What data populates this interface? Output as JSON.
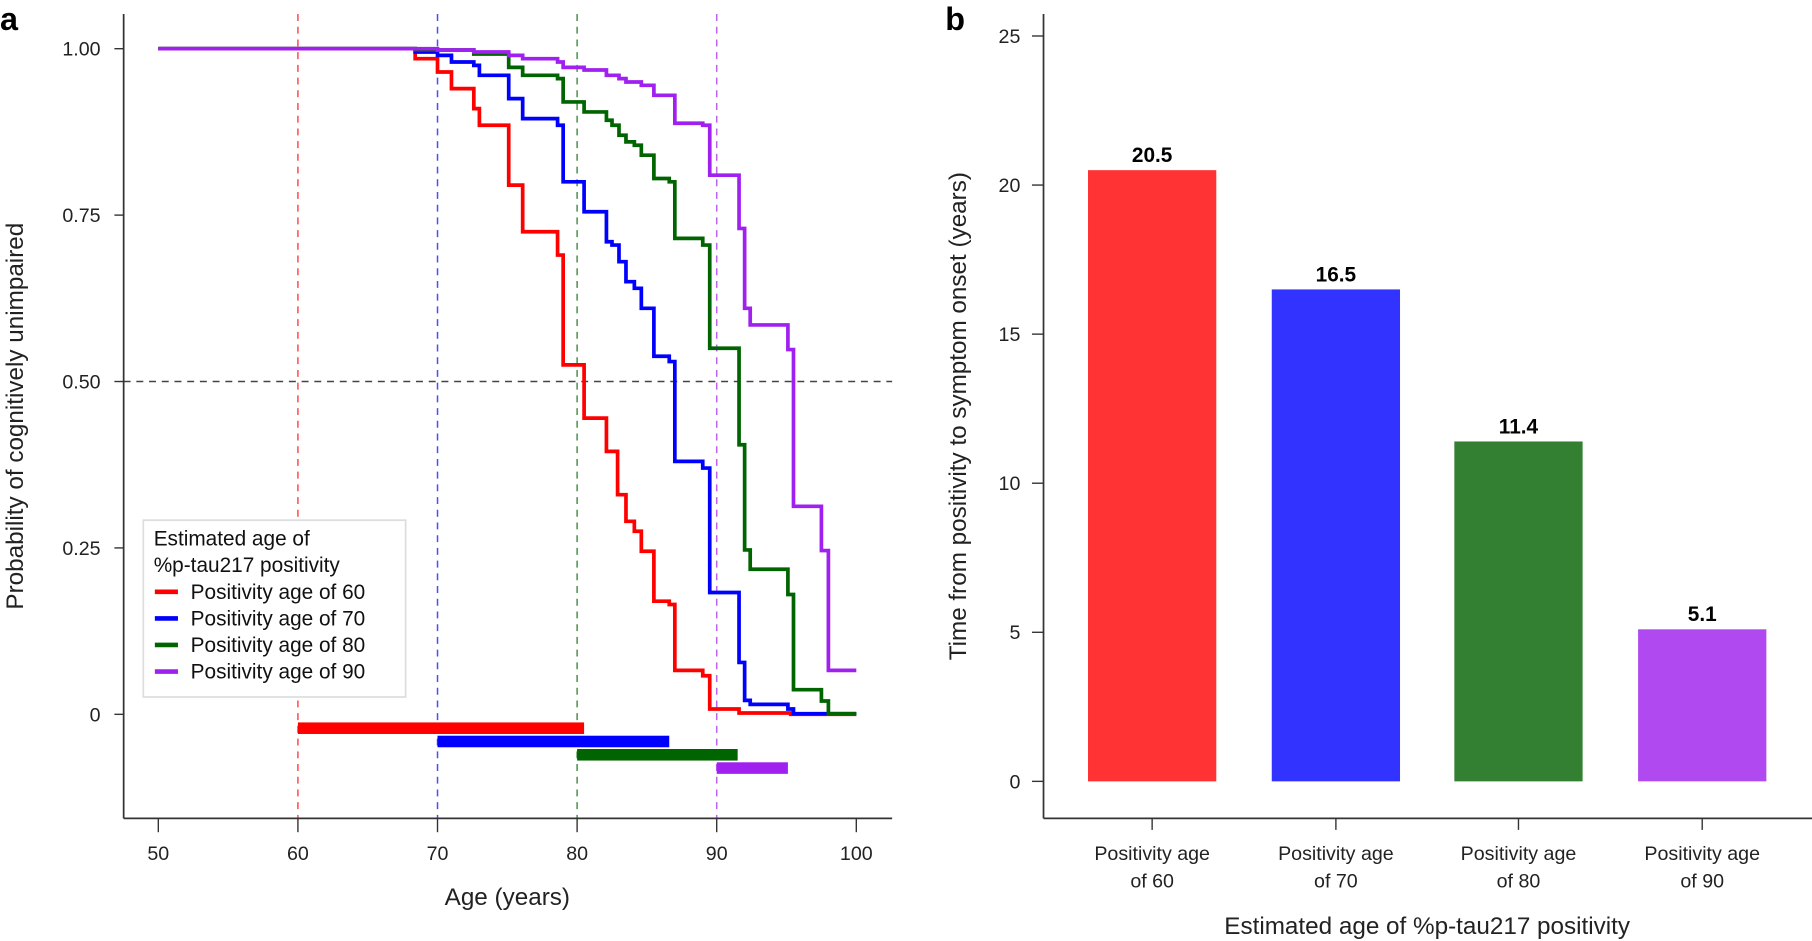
{
  "chart_data": [
    {
      "panel": "a",
      "type": "line",
      "step": true,
      "xlabel": "Age (years)",
      "ylabel": "Probability of cognitively unimpaired",
      "xlim": [
        47.5,
        102.5
      ],
      "ylim": [
        -0.154,
        1.05
      ],
      "xticks": [
        50,
        60,
        70,
        80,
        90,
        100
      ],
      "yticks": [
        {
          "value": 0,
          "label": "0"
        },
        {
          "value": 0.25,
          "label": "0.25"
        },
        {
          "value": 0.5,
          "label": "0.50"
        },
        {
          "value": 0.75,
          "label": "0.75"
        },
        {
          "value": 1.0,
          "label": "1.00"
        }
      ],
      "reference_lines": {
        "horizontal": 0.5,
        "vertical": [
          60,
          70,
          80,
          90
        ]
      },
      "legend": {
        "title_line1": "Estimated age of",
        "title_line2": "%p-tau217 positivity",
        "placement": "lower-left"
      },
      "series": [
        {
          "name": "Positivity age of 60",
          "color": "#ff0000",
          "x": [
            50,
            68.4,
            70,
            71,
            72.6,
            73,
            75.1,
            76.1,
            78.6,
            79,
            80.5,
            82.1,
            82.9,
            83.5,
            84.1,
            84.6,
            85.5,
            86.6,
            87,
            89,
            89.5,
            91.6,
            95.3
          ],
          "y": [
            1.0,
            0.985,
            0.965,
            0.94,
            0.91,
            0.885,
            0.795,
            0.725,
            0.69,
            0.525,
            0.445,
            0.395,
            0.33,
            0.29,
            0.275,
            0.245,
            0.17,
            0.165,
            0.066,
            0.058,
            0.008,
            0.002,
            0.0
          ],
          "interval": [
            60,
            80.5
          ]
        },
        {
          "name": "Positivity age of 70",
          "color": "#0000ff",
          "x": [
            50,
            68.4,
            70,
            71,
            72.6,
            73,
            75.1,
            76.1,
            78.6,
            79,
            80.5,
            82.1,
            82.5,
            83,
            83.5,
            84.1,
            84.6,
            85.5,
            86.6,
            87,
            89,
            89.5,
            91.6,
            92,
            92.4,
            95.1,
            95.5,
            100
          ],
          "y": [
            1.0,
            0.995,
            0.99,
            0.98,
            0.975,
            0.96,
            0.925,
            0.895,
            0.885,
            0.8,
            0.755,
            0.71,
            0.705,
            0.68,
            0.65,
            0.64,
            0.61,
            0.538,
            0.53,
            0.38,
            0.37,
            0.183,
            0.078,
            0.021,
            0.015,
            0.008,
            0.001,
            0.001
          ],
          "interval": [
            70,
            86.6
          ]
        },
        {
          "name": "Positivity age of 80",
          "color": "#006400",
          "x": [
            50,
            68.4,
            72.6,
            75.1,
            76.1,
            78.6,
            79,
            80.5,
            82.1,
            82.5,
            83,
            83.5,
            84.1,
            84.6,
            85.5,
            86.6,
            87,
            89,
            89.5,
            91.6,
            92,
            92.4,
            95.1,
            95.5,
            97.5,
            98,
            100
          ],
          "y": [
            1.0,
            0.998,
            0.992,
            0.972,
            0.96,
            0.955,
            0.92,
            0.905,
            0.8925,
            0.885,
            0.87,
            0.86,
            0.855,
            0.84,
            0.805,
            0.8,
            0.715,
            0.705,
            0.55,
            0.405,
            0.247,
            0.218,
            0.18,
            0.037,
            0.02,
            0.001,
            0.001
          ],
          "interval": [
            80,
            91.5
          ]
        },
        {
          "name": "Positivity age of 90",
          "color": "#a020f0",
          "x": [
            50,
            70,
            72.6,
            75.1,
            76.1,
            78.6,
            79,
            80.5,
            82.1,
            83,
            83.5,
            84.6,
            85.5,
            87,
            89,
            89.5,
            91.6,
            92,
            92.4,
            95.1,
            95.5,
            97.5,
            98,
            100
          ],
          "y": [
            1.0,
            0.998,
            0.995,
            0.99,
            0.985,
            0.98,
            0.972,
            0.968,
            0.96,
            0.955,
            0.95,
            0.945,
            0.93,
            0.888,
            0.885,
            0.81,
            0.73,
            0.61,
            0.585,
            0.548,
            0.3125,
            0.246,
            0.066,
            0.066
          ],
          "interval": [
            90,
            95.1
          ]
        }
      ]
    },
    {
      "panel": "b",
      "type": "bar",
      "xlabel": "Estimated age of %p-tau217 positivity",
      "ylabel": "Time from positivity to symptom onset (years)",
      "ylim": [
        -2.4,
        26
      ],
      "yticks": [
        0,
        5,
        10,
        15,
        20,
        25
      ],
      "categories": [
        {
          "line1": "Positivity age",
          "line2": "of 60"
        },
        {
          "line1": "Positivity age",
          "line2": "of 70"
        },
        {
          "line1": "Positivity age",
          "line2": "of 80"
        },
        {
          "line1": "Positivity age",
          "line2": "of 90"
        }
      ],
      "values": [
        20.5,
        16.5,
        11.4,
        5.1
      ],
      "data_labels": [
        "20.5",
        "16.5",
        "11.4",
        "5.1"
      ],
      "colors": [
        "#ff3333",
        "#3333ff",
        "#338033",
        "#b04af0"
      ]
    }
  ]
}
